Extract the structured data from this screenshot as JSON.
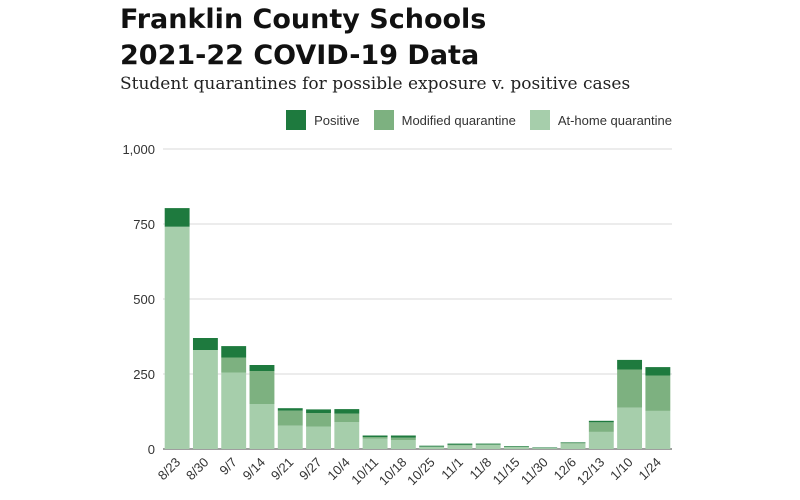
{
  "header": {
    "title_line1": "Franklin County Schools",
    "title_line2": "2021-22 COVID-19 Data",
    "subtitle": "Student quarantines for possible exposure v. positive cases"
  },
  "legend": {
    "positive": "Positive",
    "modified": "Modified quarantine",
    "athome": "At-home quarantine"
  },
  "colors": {
    "positive": "#1e7a3e",
    "modified": "#7db180",
    "athome": "#a6ceab",
    "grid": "#d9d9d9",
    "axis": "#666666"
  },
  "chart_data": {
    "type": "bar",
    "stacked": true,
    "ylim": [
      0,
      1000
    ],
    "yticks": [
      0,
      250,
      500,
      750,
      1000
    ],
    "ytick_labels": [
      "0",
      "250",
      "500",
      "750",
      "1,000"
    ],
    "grid": true,
    "legend_position": "top-right",
    "categories": [
      "8/23",
      "8/30",
      "9/7",
      "9/14",
      "9/21",
      "9/27",
      "10/4",
      "10/11",
      "10/18",
      "10/25",
      "11/1",
      "11/8",
      "11/15",
      "11/30",
      "12/6",
      "12/13",
      "1/10",
      "1/24"
    ],
    "series": [
      {
        "key": "athome",
        "name": "At-home quarantine",
        "values": [
          741,
          330,
          255,
          150,
          78,
          75,
          90,
          35,
          30,
          8,
          12,
          15,
          8,
          3,
          18,
          57,
          138,
          127
        ]
      },
      {
        "key": "modified",
        "name": "Modified quarantine",
        "values": [
          0,
          0,
          50,
          110,
          50,
          45,
          28,
          5,
          8,
          0,
          2,
          0,
          0,
          0,
          2,
          32,
          127,
          118
        ]
      },
      {
        "key": "positive",
        "name": "Positive",
        "values": [
          62,
          40,
          38,
          20,
          8,
          12,
          15,
          5,
          7,
          3,
          4,
          3,
          2,
          2,
          2,
          5,
          32,
          28
        ]
      }
    ]
  }
}
